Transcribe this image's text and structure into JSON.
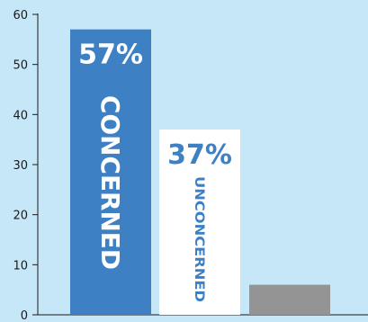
{
  "colors": {
    "background": "#c5e7f8",
    "axis": "#1a1a1a"
  },
  "chart_data": {
    "type": "bar",
    "title": "",
    "xlabel": "",
    "ylabel": "",
    "ylim": [
      0,
      60
    ],
    "yticks": [
      0,
      10,
      20,
      30,
      40,
      50,
      60
    ],
    "grid": false,
    "legend": "none",
    "categories": [
      "CONCERNED",
      "UNCONCERNED",
      ""
    ],
    "values": [
      57,
      37,
      6
    ],
    "data_labels": [
      "57%",
      "37%",
      ""
    ],
    "bar_colors": [
      "#3e80c4",
      "#ffffff",
      "#949494"
    ],
    "label_colors": [
      "#ffffff",
      "#3e80c4",
      "#ffffff"
    ]
  }
}
